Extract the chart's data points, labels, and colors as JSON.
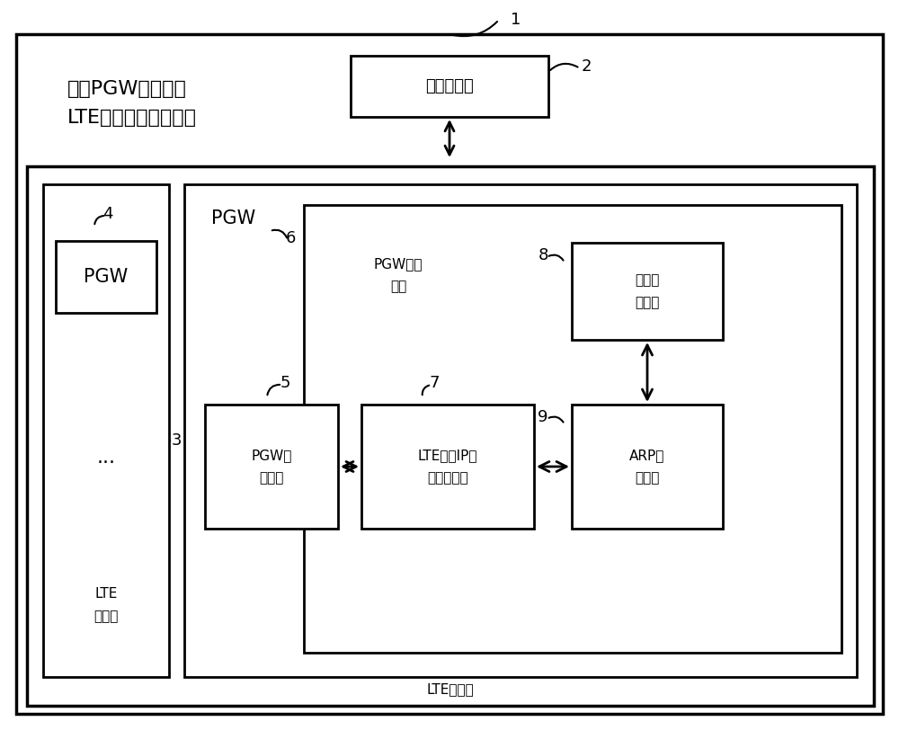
{
  "bg_color": "#ffffff",
  "title_text": "一种PGW池组网下\nLTE终端数据路由系统",
  "label1": "1",
  "label2": "2",
  "label3": "3",
  "label4": "4",
  "label5": "5",
  "label6": "6",
  "label7": "7",
  "label8": "8",
  "label9": "9",
  "network_device_label": "网络侧设备",
  "pgw_box_label": "PGW",
  "pgw_signal_label": "PGW信\n令模块",
  "pgw_data_label": "PGW数据\n模块",
  "lte_ip_label": "LTE终端IP地\n址维护模块",
  "arp_label": "ARP处\n理模块",
  "data_forward_label": "数据转\n发通道",
  "lte_core_label_left": "LTE\n核心网",
  "lte_core_label_bottom": "LTE核心网",
  "pgw_label": "PGW",
  "dots_label": "...",
  "font_size_large": 16,
  "font_size_medium": 13,
  "font_size_small": 11,
  "font_size_tiny": 10
}
